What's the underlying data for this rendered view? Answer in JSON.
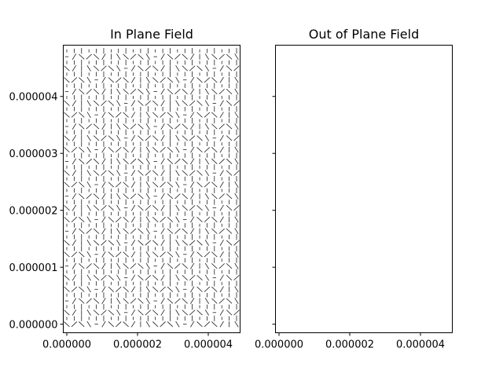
{
  "chart_data": [
    {
      "type": "quiver",
      "title": "In Plane Field",
      "xlabel": "",
      "ylabel": "",
      "xlim": [
        -1e-07,
        4.9e-06
      ],
      "ylim": [
        -1.5e-07,
        4.9e-06
      ],
      "xticks": [
        {
          "value": 0.0,
          "label": "0.000000"
        },
        {
          "value": 2e-06,
          "label": "0.000002"
        },
        {
          "value": 4e-06,
          "label": "0.000004"
        }
      ],
      "yticks": [
        {
          "value": 0.0,
          "label": "0.000000"
        },
        {
          "value": 1e-06,
          "label": "0.000001"
        },
        {
          "value": 2e-06,
          "label": "0.000002"
        },
        {
          "value": 3e-06,
          "label": "0.000003"
        },
        {
          "value": 4e-06,
          "label": "0.000004"
        }
      ],
      "grid": false,
      "vector_field": {
        "x_range": [
          0.0,
          4.8e-06
        ],
        "y_range": [
          0.0,
          4.8e-06
        ],
        "nx": 24,
        "ny": 48,
        "scale": 2.2e-07,
        "magnitude_range": [
          0.05,
          1.0
        ],
        "pattern": "diagonal lattice of short oriented dashes"
      }
    },
    {
      "type": "quiver",
      "title": "Out of Plane Field",
      "xlabel": "",
      "ylabel": "",
      "xlim": [
        -1e-07,
        4.9e-06
      ],
      "ylim": [
        -1.5e-07,
        4.9e-06
      ],
      "xticks": [
        {
          "value": 0.0,
          "label": "0.000000"
        },
        {
          "value": 2e-06,
          "label": "0.000002"
        },
        {
          "value": 4e-06,
          "label": "0.000004"
        }
      ],
      "yticks": [
        {
          "value": 0.0,
          "label": ""
        },
        {
          "value": 1e-06,
          "label": ""
        },
        {
          "value": 2e-06,
          "label": ""
        },
        {
          "value": 3e-06,
          "label": ""
        },
        {
          "value": 4e-06,
          "label": ""
        }
      ],
      "grid": false,
      "vector_field": null
    }
  ]
}
